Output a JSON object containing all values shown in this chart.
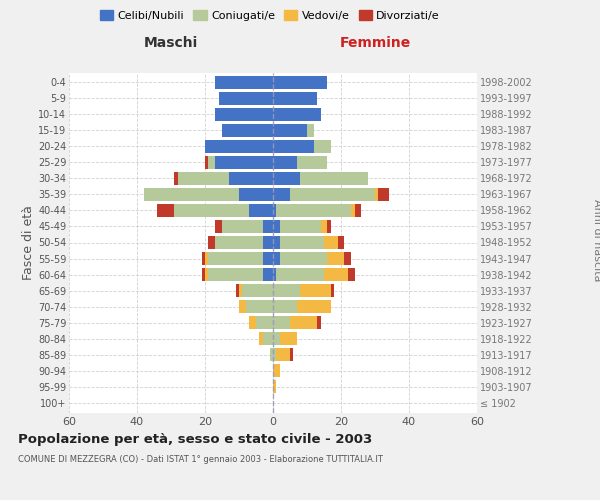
{
  "age_groups": [
    "100+",
    "95-99",
    "90-94",
    "85-89",
    "80-84",
    "75-79",
    "70-74",
    "65-69",
    "60-64",
    "55-59",
    "50-54",
    "45-49",
    "40-44",
    "35-39",
    "30-34",
    "25-29",
    "20-24",
    "15-19",
    "10-14",
    "5-9",
    "0-4"
  ],
  "birth_years": [
    "≤ 1902",
    "1903-1907",
    "1908-1912",
    "1913-1917",
    "1918-1922",
    "1923-1927",
    "1928-1932",
    "1933-1937",
    "1938-1942",
    "1943-1947",
    "1948-1952",
    "1953-1957",
    "1958-1962",
    "1963-1967",
    "1968-1972",
    "1973-1977",
    "1978-1982",
    "1983-1987",
    "1988-1992",
    "1993-1997",
    "1998-2002"
  ],
  "males": {
    "celibi": [
      0,
      0,
      0,
      0,
      0,
      0,
      0,
      0,
      3,
      3,
      3,
      3,
      7,
      10,
      13,
      17,
      20,
      15,
      17,
      16,
      17
    ],
    "coniugati": [
      0,
      0,
      0,
      1,
      3,
      5,
      8,
      9,
      16,
      16,
      14,
      12,
      22,
      28,
      15,
      2,
      0,
      0,
      0,
      0,
      0
    ],
    "vedovi": [
      0,
      0,
      0,
      0,
      1,
      2,
      2,
      1,
      1,
      1,
      0,
      0,
      0,
      0,
      0,
      0,
      0,
      0,
      0,
      0,
      0
    ],
    "divorziati": [
      0,
      0,
      0,
      0,
      0,
      0,
      0,
      1,
      1,
      1,
      2,
      2,
      5,
      0,
      1,
      1,
      0,
      0,
      0,
      0,
      0
    ]
  },
  "females": {
    "nubili": [
      0,
      0,
      0,
      0,
      0,
      0,
      0,
      0,
      1,
      2,
      2,
      2,
      1,
      5,
      8,
      7,
      12,
      10,
      14,
      13,
      16
    ],
    "coniugate": [
      0,
      0,
      0,
      1,
      2,
      5,
      7,
      8,
      14,
      14,
      13,
      12,
      22,
      25,
      20,
      9,
      5,
      2,
      0,
      0,
      0
    ],
    "vedove": [
      0,
      1,
      2,
      4,
      5,
      8,
      10,
      9,
      7,
      5,
      4,
      2,
      1,
      1,
      0,
      0,
      0,
      0,
      0,
      0,
      0
    ],
    "divorziate": [
      0,
      0,
      0,
      1,
      0,
      1,
      0,
      1,
      2,
      2,
      2,
      1,
      2,
      3,
      0,
      0,
      0,
      0,
      0,
      0,
      0
    ]
  },
  "colors": {
    "celibi": "#4472C4",
    "coniugati": "#b5c99a",
    "vedovi": "#f4b942",
    "divorziati": "#c0392b"
  },
  "xlim": 60,
  "title": "Popolazione per età, sesso e stato civile - 2003",
  "subtitle": "COMUNE DI MEZZEGRA (CO) - Dati ISTAT 1° gennaio 2003 - Elaborazione TUTTITALIA.IT",
  "ylabel_left": "Fasce di età",
  "ylabel_right": "Anni di nascita",
  "xlabel_left": "Maschi",
  "xlabel_right": "Femmine",
  "bg_color": "#f0f0f0",
  "plot_bg": "#ffffff",
  "grid_color": "#cccccc"
}
